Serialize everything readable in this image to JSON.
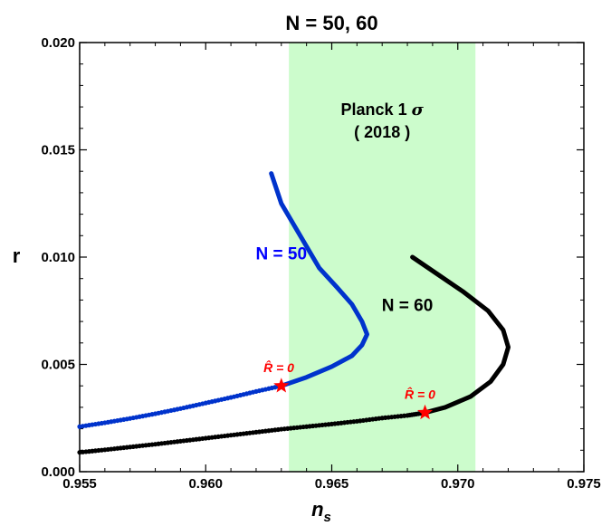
{
  "chart_data": {
    "type": "scatter",
    "title": "N = 50, 60",
    "xlabel": "n",
    "xlabel_sub": "s",
    "ylabel": "r",
    "xlim": [
      0.955,
      0.975
    ],
    "ylim": [
      0.0,
      0.02
    ],
    "xticks": [
      "0.955",
      "0.960",
      "0.965",
      "0.970",
      "0.975"
    ],
    "yticks": [
      "0.000",
      "0.005",
      "0.010",
      "0.015",
      "0.020"
    ],
    "band": {
      "x_min": 0.9633,
      "x_max": 0.9707,
      "label_line1": "Planck 1",
      "label_sigma": "σ",
      "label_line2": "( 2018 )",
      "color": "#ccfccc"
    },
    "series": [
      {
        "name": "N = 50",
        "color": "#0033cc",
        "tail_points": [
          [
            0.955,
            0.0021
          ],
          [
            0.956,
            0.00228
          ],
          [
            0.957,
            0.00248
          ],
          [
            0.958,
            0.0027
          ],
          [
            0.959,
            0.00294
          ],
          [
            0.96,
            0.0032
          ],
          [
            0.961,
            0.00346
          ],
          [
            0.962,
            0.00374
          ],
          [
            0.963,
            0.004
          ]
        ],
        "curve_points": [
          [
            0.963,
            0.004
          ],
          [
            0.964,
            0.0044
          ],
          [
            0.965,
            0.0049
          ],
          [
            0.9658,
            0.0054
          ],
          [
            0.9662,
            0.0059
          ],
          [
            0.9664,
            0.0064
          ],
          [
            0.9662,
            0.007
          ],
          [
            0.9658,
            0.0078
          ],
          [
            0.9652,
            0.0086
          ],
          [
            0.9645,
            0.0095
          ],
          [
            0.964,
            0.0105
          ],
          [
            0.9635,
            0.0115
          ],
          [
            0.963,
            0.0125
          ],
          [
            0.9626,
            0.0139
          ]
        ],
        "star": [
          0.963,
          0.004
        ]
      },
      {
        "name": "N = 60",
        "color": "#000000",
        "tail_points": [
          [
            0.955,
            0.0009
          ],
          [
            0.956,
            0.00102
          ],
          [
            0.957,
            0.00115
          ],
          [
            0.958,
            0.00128
          ],
          [
            0.959,
            0.00142
          ],
          [
            0.96,
            0.00156
          ],
          [
            0.961,
            0.0017
          ],
          [
            0.962,
            0.00184
          ],
          [
            0.963,
            0.00198
          ],
          [
            0.964,
            0.0021
          ],
          [
            0.965,
            0.00222
          ],
          [
            0.966,
            0.00235
          ],
          [
            0.967,
            0.0025
          ],
          [
            0.968,
            0.00262
          ],
          [
            0.9687,
            0.00275
          ]
        ],
        "curve_points": [
          [
            0.9687,
            0.00275
          ],
          [
            0.9695,
            0.003
          ],
          [
            0.9705,
            0.0035
          ],
          [
            0.9713,
            0.0042
          ],
          [
            0.9718,
            0.005
          ],
          [
            0.972,
            0.0058
          ],
          [
            0.9718,
            0.0066
          ],
          [
            0.9712,
            0.0075
          ],
          [
            0.9702,
            0.0084
          ],
          [
            0.9692,
            0.0092
          ],
          [
            0.9682,
            0.01
          ]
        ],
        "star": [
          0.9687,
          0.00275
        ]
      }
    ],
    "annotations": [
      {
        "text": "N = 50",
        "x": 0.963,
        "y": 0.0099,
        "color": "#0000ff"
      },
      {
        "text": "N = 60",
        "x": 0.968,
        "y": 0.0075,
        "color": "#000000"
      },
      {
        "text": "R̂ = 0",
        "x": 0.9629,
        "y": 0.00465,
        "color": "#ff0000"
      },
      {
        "text": "R̂ = 0",
        "x": 0.9685,
        "y": 0.0034,
        "color": "#ff0000"
      }
    ]
  }
}
